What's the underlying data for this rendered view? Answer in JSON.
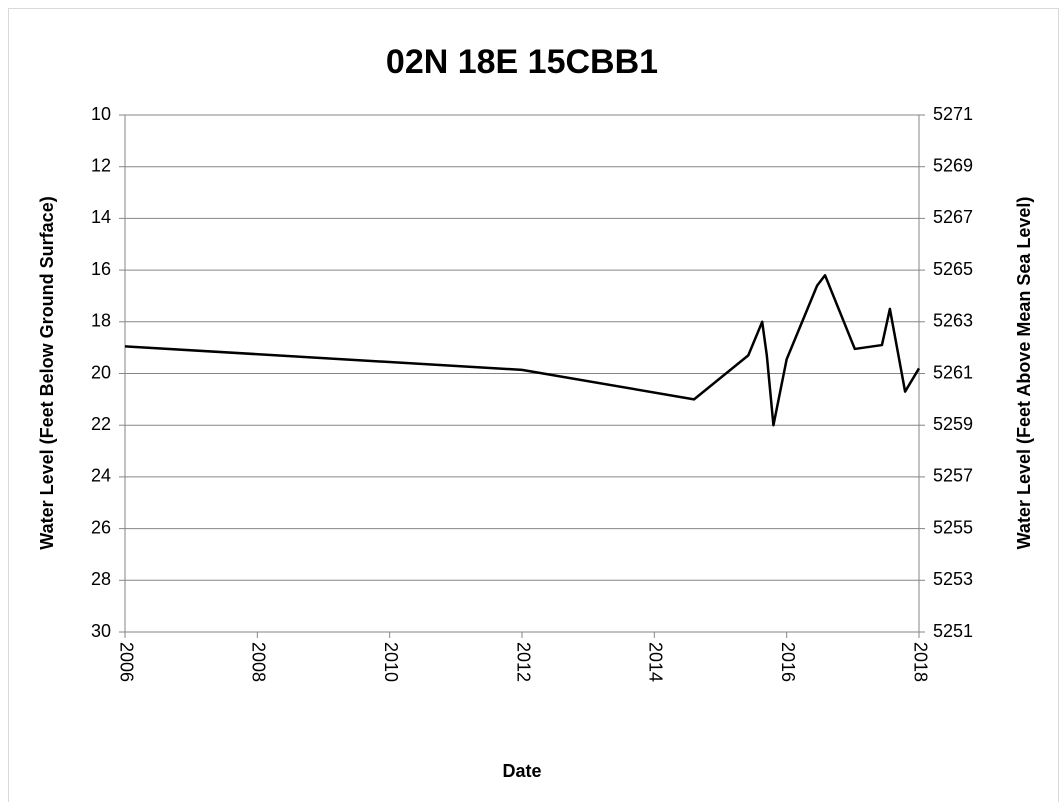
{
  "chart_data": {
    "type": "line",
    "title": "02N 18E 15CBB1",
    "xlabel": "Date",
    "ylabel": "Water Level (Feet Below Ground Surface)",
    "y2label": "Water Level (Feet Above Mean Sea Level)",
    "x": [
      2006.0,
      2012.0,
      2014.6,
      2015.42,
      2015.63,
      2015.7,
      2015.8,
      2016.0,
      2016.46,
      2016.58,
      2017.03,
      2017.44,
      2017.56,
      2017.79,
      2018.0
    ],
    "series": [
      {
        "color": "#000000",
        "values": [
          18.95,
          19.86,
          21.0,
          19.3,
          18.0,
          19.3,
          22.0,
          19.45,
          16.6,
          16.2,
          19.05,
          18.9,
          17.5,
          20.7,
          19.8
        ]
      }
    ],
    "xlim": [
      2006,
      2018
    ],
    "xticks": [
      2006,
      2008,
      2010,
      2012,
      2014,
      2016,
      2018
    ],
    "ylim": [
      30,
      10
    ],
    "yticks": [
      10,
      12,
      14,
      16,
      18,
      20,
      22,
      24,
      26,
      28,
      30
    ],
    "y2lim": [
      5251,
      5271
    ],
    "y2ticks": [
      5271,
      5269,
      5267,
      5265,
      5263,
      5261,
      5259,
      5257,
      5255,
      5253,
      5251
    ],
    "grid": true
  }
}
